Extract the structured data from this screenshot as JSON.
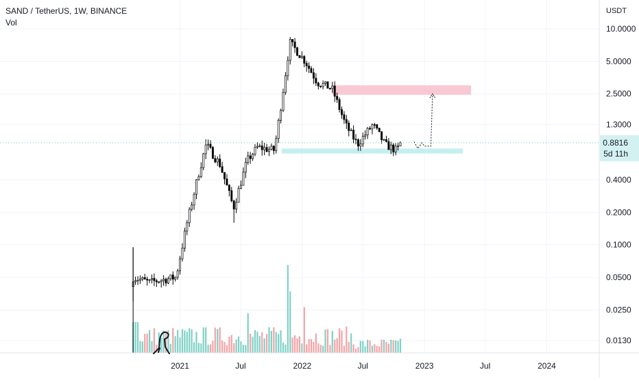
{
  "header": {
    "symbol_line": "SAND / TetherUS, 1W, BINANCE",
    "indicator": "Vol"
  },
  "price_axis": {
    "currency": "USDT",
    "ticks": [
      "10.0000",
      "5.0000",
      "2.5000",
      "1.3000",
      "0.4000",
      "0.2000",
      "0.1000",
      "0.0500",
      "0.0250",
      "0.0130"
    ],
    "current_price": "0.8816",
    "countdown": "5d 11h"
  },
  "time_axis": {
    "ticks": [
      "2021",
      "Jul",
      "2022",
      "Jul",
      "2023",
      "Jul",
      "2024"
    ]
  },
  "colors": {
    "candle": "#000000",
    "volume_up": "#7fd1c6",
    "volume_down": "#f3a3a6",
    "resistance_zone": "#f8c9d4",
    "support_zone": "#c5eef0",
    "price_label_bg": "#d4f1f2",
    "grid": "#f0f3fa"
  },
  "chart_data": {
    "type": "candlestick",
    "scale": "log",
    "interval": "1W",
    "x_range": [
      "2020-08",
      "2024-03"
    ],
    "y_range": [
      0.0105,
      13.5
    ],
    "grid": true,
    "keypoints": [
      {
        "date": "2020-08-14",
        "close": 0.05,
        "high": 0.095,
        "low": 0.03
      },
      {
        "date": "2020-10-01",
        "close": 0.045
      },
      {
        "date": "2020-12-20",
        "close": 0.05
      },
      {
        "date": "2021-01-20",
        "close": 0.15
      },
      {
        "date": "2021-02-25",
        "close": 0.45
      },
      {
        "date": "2021-03-20",
        "close": 0.85,
        "high": 0.95
      },
      {
        "date": "2021-05-01",
        "close": 0.55
      },
      {
        "date": "2021-06-10",
        "close": 0.22,
        "low": 0.16
      },
      {
        "date": "2021-07-20",
        "close": 0.6
      },
      {
        "date": "2021-08-20",
        "close": 0.8
      },
      {
        "date": "2021-10-10",
        "close": 0.75
      },
      {
        "date": "2021-11-07",
        "close": 3.0
      },
      {
        "date": "2021-11-25",
        "close": 7.5,
        "high": 8.4
      },
      {
        "date": "2022-01-10",
        "close": 5.0
      },
      {
        "date": "2022-02-15",
        "close": 3.2
      },
      {
        "date": "2022-03-31",
        "close": 2.8
      },
      {
        "date": "2022-05-10",
        "close": 1.3
      },
      {
        "date": "2022-06-15",
        "close": 0.85
      },
      {
        "date": "2022-07-31",
        "close": 1.3
      },
      {
        "date": "2022-09-05",
        "close": 0.85
      },
      {
        "date": "2022-10-10",
        "close": 0.75
      },
      {
        "date": "2022-10-25",
        "close": 0.8816
      }
    ],
    "last_price": 0.8816,
    "zones": [
      {
        "kind": "resistance",
        "from": "2022-04-01",
        "to": "2023-05-20",
        "low": 2.45,
        "high": 3.0
      },
      {
        "kind": "support",
        "from": "2021-11-01",
        "to": "2023-04-25",
        "low": 0.7,
        "high": 0.78
      }
    ],
    "projection": [
      {
        "date": "2022-12-01",
        "price": 0.9
      },
      {
        "date": "2022-12-12",
        "price": 0.78
      },
      {
        "date": "2022-12-24",
        "price": 0.88
      },
      {
        "date": "2023-01-01",
        "price": 0.82
      },
      {
        "date": "2023-01-20",
        "price": 0.82
      },
      {
        "date": "2023-01-25",
        "price": 2.5
      }
    ],
    "volume_peaks": [
      {
        "date": "2021-11-22",
        "relative": 1.0
      },
      {
        "date": "2021-11-29",
        "relative": 0.7
      },
      {
        "date": "2021-07-20",
        "relative": 0.45
      },
      {
        "date": "2022-01-10",
        "relative": 0.52
      }
    ]
  }
}
